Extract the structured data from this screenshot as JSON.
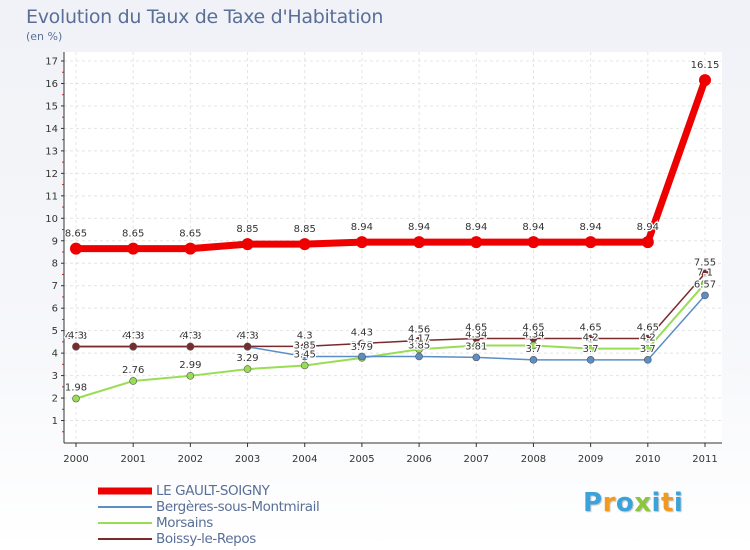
{
  "chart_data": {
    "type": "line",
    "title": "Evolution du Taux de Taxe d'Habitation",
    "unit_label": "(en %)",
    "xlabel": "",
    "ylabel": "",
    "ylim": [
      0,
      17
    ],
    "yticks": [
      "1",
      "2",
      "3",
      "4",
      "5",
      "6",
      "7",
      "8",
      "9",
      "10",
      "11",
      "12",
      "13",
      "14",
      "15",
      "16",
      "17"
    ],
    "categories": [
      "2000",
      "2001",
      "2002",
      "2003",
      "2004",
      "2005",
      "2006",
      "2007",
      "2008",
      "2009",
      "2010",
      "2011"
    ],
    "series": [
      {
        "name": "LE GAULT-SOIGNY",
        "color": "#ee0000",
        "values": [
          8.65,
          8.65,
          8.65,
          8.85,
          8.85,
          8.94,
          8.94,
          8.94,
          8.94,
          8.94,
          8.94,
          16.15
        ],
        "labels": [
          "8.65",
          "8.65",
          "8.65",
          "8.85",
          "8.85",
          "8.94",
          "8.94",
          "8.94",
          "8.94",
          "8.94",
          "8.94",
          "16.15"
        ]
      },
      {
        "name": "Bergères-sous-Montmirail",
        "color": "#5b8ec4",
        "values": [
          4.28,
          4.28,
          4.28,
          4.28,
          3.85,
          3.85,
          3.85,
          3.81,
          3.7,
          3.7,
          3.7,
          6.57
        ],
        "labels": [
          "4.28",
          "4.28",
          "4.28",
          "4.28",
          "3.85",
          "3.85",
          "3.85",
          "3.81",
          "3.7",
          "3.7",
          "3.7",
          "6.57"
        ]
      },
      {
        "name": "Morsains",
        "color": "#99dd55",
        "values": [
          1.98,
          2.76,
          2.99,
          3.29,
          3.45,
          3.79,
          4.17,
          4.34,
          4.34,
          4.2,
          4.2,
          7.1
        ],
        "labels": [
          "1.98",
          "2.76",
          "2.99",
          "3.29",
          "3.45",
          "3.79",
          "4.17",
          "4.34",
          "4.34",
          "4.2",
          "4.2",
          "7.1"
        ]
      },
      {
        "name": "Boissy-le-Repos",
        "color": "#7a2a2a",
        "values": [
          4.3,
          4.3,
          4.3,
          4.3,
          4.3,
          4.43,
          4.56,
          4.65,
          4.65,
          4.65,
          4.65,
          7.55
        ],
        "labels": [
          "4.3",
          "4.3",
          "4.3",
          "4.3",
          "4.3",
          "4.43",
          "4.56",
          "4.65",
          "4.65",
          "4.65",
          "4.65",
          "7.55"
        ]
      }
    ],
    "legend_position": "bottom-left",
    "grid": true
  },
  "brand": {
    "letters": [
      "P",
      "r",
      "o",
      "x",
      "i",
      "t",
      "i"
    ],
    "colors": [
      "#3aa3dc",
      "#f39a1e",
      "#3aa3dc",
      "#8cc63e",
      "#3aa3dc",
      "#f39a1e",
      "#3aa3dc"
    ]
  }
}
